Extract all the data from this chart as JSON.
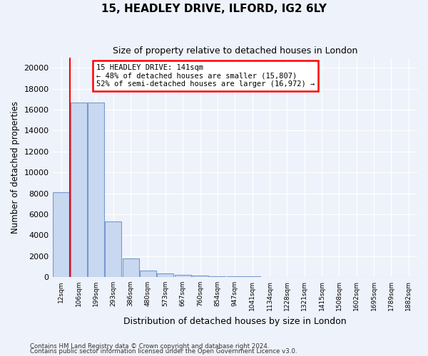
{
  "title1": "15, HEADLEY DRIVE, ILFORD, IG2 6LY",
  "title2": "Size of property relative to detached houses in London",
  "xlabel": "Distribution of detached houses by size in London",
  "ylabel": "Number of detached properties",
  "bin_labels": [
    "12sqm",
    "106sqm",
    "199sqm",
    "293sqm",
    "386sqm",
    "480sqm",
    "573sqm",
    "667sqm",
    "760sqm",
    "854sqm",
    "947sqm",
    "1041sqm",
    "1134sqm",
    "1228sqm",
    "1321sqm",
    "1415sqm",
    "1508sqm",
    "1602sqm",
    "1695sqm",
    "1789sqm",
    "1882sqm"
  ],
  "bar_values": [
    8100,
    16700,
    16700,
    5300,
    1750,
    650,
    350,
    230,
    160,
    110,
    70,
    55,
    40,
    30,
    22,
    18,
    14,
    12,
    9,
    7,
    5
  ],
  "bar_color": "#c8d8f0",
  "bar_edge_color": "#7799cc",
  "vline_x": 0.5,
  "vline_color": "red",
  "annotation_text": "15 HEADLEY DRIVE: 141sqm\n← 48% of detached houses are smaller (15,807)\n52% of semi-detached houses are larger (16,972) →",
  "annotation_box_color": "white",
  "annotation_box_edge": "red",
  "ylim": [
    0,
    21000
  ],
  "yticks": [
    0,
    2000,
    4000,
    6000,
    8000,
    10000,
    12000,
    14000,
    16000,
    18000,
    20000
  ],
  "footer1": "Contains HM Land Registry data © Crown copyright and database right 2024.",
  "footer2": "Contains public sector information licensed under the Open Government Licence v3.0.",
  "bg_color": "#eef2fa"
}
